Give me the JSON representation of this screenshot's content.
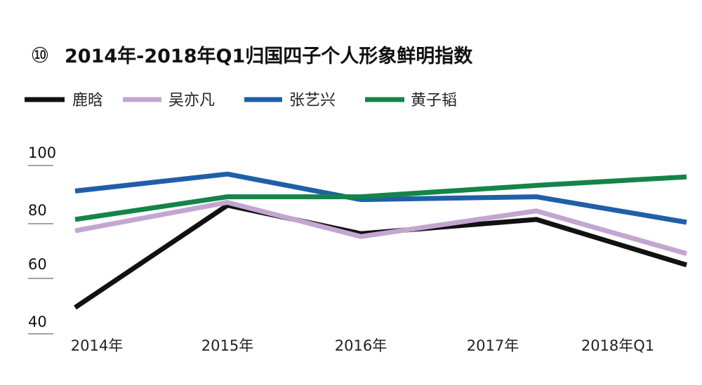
{
  "chart_data": {
    "type": "line",
    "number_badge": "⑩",
    "title": "2014年-2018年Q1归国四子个人形象鲜明指数",
    "categories": [
      "2014年",
      "2015年",
      "2016年",
      "2017年",
      "2018年Q1"
    ],
    "yticks": [
      "100",
      "80",
      "60",
      "40"
    ],
    "ylim": [
      40,
      105
    ],
    "grid": false,
    "legend_position": "top-left",
    "series": [
      {
        "name": "鹿晗",
        "color": "#111111",
        "values": [
          50,
          86,
          76,
          81,
          65
        ]
      },
      {
        "name": "吴亦凡",
        "color": "#c3a6cf",
        "values": [
          77,
          87,
          75,
          84,
          69
        ]
      },
      {
        "name": "张艺兴",
        "color": "#1f5fa8",
        "values": [
          91,
          97,
          88,
          89,
          80
        ]
      },
      {
        "name": "黄子韬",
        "color": "#14844a",
        "values": [
          81,
          89,
          89,
          93,
          96
        ]
      }
    ]
  }
}
